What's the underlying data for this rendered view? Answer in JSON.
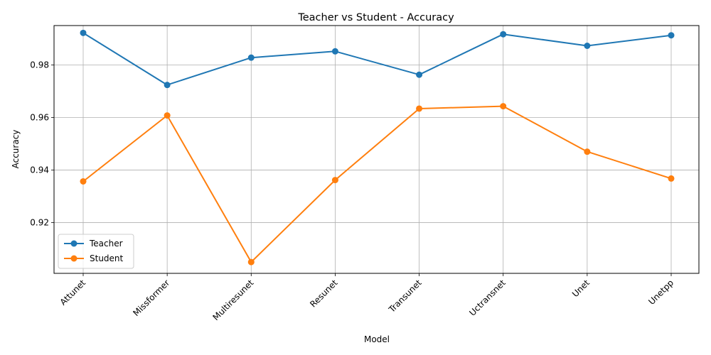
{
  "chart_data": {
    "type": "line",
    "title": "Teacher vs Student - Accuracy",
    "xlabel": "Model",
    "ylabel": "Accuracy",
    "categories": [
      "Attunet",
      "Missformer",
      "Multiresunet",
      "Resunet",
      "Transunet",
      "Uctransnet",
      "Unet",
      "Unetpp"
    ],
    "series": [
      {
        "name": "Teacher",
        "color": "#1f77b4",
        "values": [
          0.9922,
          0.9724,
          0.9828,
          0.9852,
          0.9763,
          0.9917,
          0.9873,
          0.9913
        ]
      },
      {
        "name": "Student",
        "color": "#ff7f0e",
        "values": [
          0.9357,
          0.9608,
          0.905,
          0.9362,
          0.9634,
          0.9643,
          0.947,
          0.9368
        ]
      }
    ],
    "ylim": [
      0.9007,
      0.995
    ],
    "yticks": [
      0.92,
      0.94,
      0.96,
      0.98
    ],
    "ytick_labels": [
      "0.92",
      "0.94",
      "0.96",
      "0.98"
    ],
    "grid": true,
    "legend_position": "lower-left"
  }
}
